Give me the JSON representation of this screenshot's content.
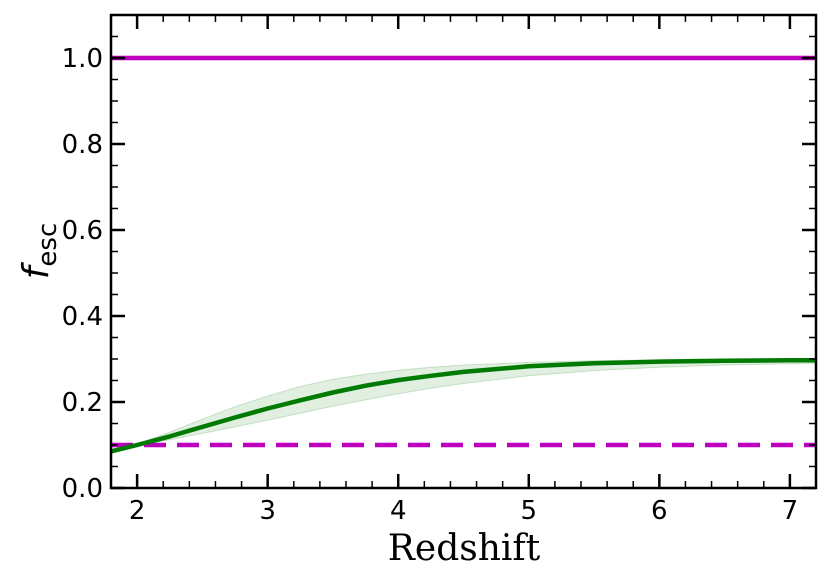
{
  "chart_data": {
    "type": "line",
    "title": "",
    "xlabel": "Redshift",
    "ylabel_main": "f",
    "ylabel_sub": "esc",
    "xlim": [
      1.8,
      7.2
    ],
    "ylim": [
      0.0,
      1.1
    ],
    "x_ticks": [
      2,
      3,
      4,
      5,
      6,
      7
    ],
    "x_tick_labels": [
      "2",
      "3",
      "4",
      "5",
      "6",
      "7"
    ],
    "y_ticks": [
      0.0,
      0.2,
      0.4,
      0.6,
      0.8,
      1.0
    ],
    "y_tick_labels": [
      "0.0",
      "0.2",
      "0.4",
      "0.6",
      "0.8",
      "1.0"
    ],
    "grid": false,
    "legend": "none",
    "series": [
      {
        "style": "solid",
        "color": "#bd00bd",
        "x": [
          1.8,
          7.2
        ],
        "y": [
          1.0,
          1.0
        ]
      },
      {
        "style": "dashed",
        "color": "#bd00bd",
        "x": [
          1.8,
          7.2
        ],
        "y": [
          0.1,
          0.1
        ]
      },
      {
        "style": "solid",
        "color": "#007a00",
        "x": [
          1.8,
          2.0,
          2.25,
          2.5,
          2.75,
          3.0,
          3.25,
          3.5,
          3.75,
          4.0,
          4.25,
          4.5,
          5.0,
          5.5,
          6.0,
          6.5,
          7.0,
          7.2
        ],
        "y": [
          0.085,
          0.1,
          0.12,
          0.142,
          0.164,
          0.185,
          0.204,
          0.222,
          0.238,
          0.251,
          0.261,
          0.27,
          0.283,
          0.29,
          0.294,
          0.296,
          0.297,
          0.297
        ]
      }
    ],
    "band": {
      "color": "#007a00",
      "opacity": 0.12,
      "x": [
        1.8,
        2.0,
        2.25,
        2.5,
        2.75,
        3.0,
        3.25,
        3.5,
        3.75,
        4.0,
        4.25,
        4.5,
        5.0,
        5.5,
        6.0,
        6.5,
        7.0,
        7.2
      ],
      "y_lower": [
        0.085,
        0.098,
        0.112,
        0.127,
        0.142,
        0.158,
        0.174,
        0.19,
        0.205,
        0.219,
        0.232,
        0.243,
        0.261,
        0.273,
        0.281,
        0.286,
        0.289,
        0.29
      ],
      "y_upper": [
        0.085,
        0.102,
        0.13,
        0.16,
        0.189,
        0.214,
        0.236,
        0.253,
        0.265,
        0.274,
        0.281,
        0.286,
        0.292,
        0.296,
        0.298,
        0.3,
        0.301,
        0.301
      ]
    }
  }
}
